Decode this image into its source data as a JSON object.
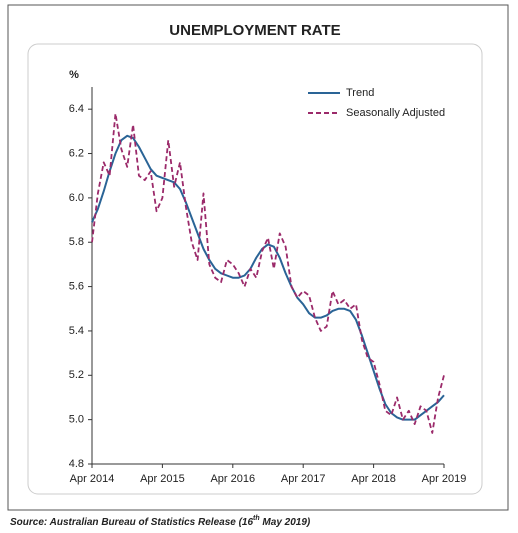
{
  "chart_data": {
    "type": "line",
    "title": "UNEMPLOYMENT RATE",
    "y_label": "%",
    "categories": [
      "Apr 2014",
      null,
      null,
      null,
      null,
      null,
      null,
      null,
      null,
      null,
      null,
      null,
      "Apr 2015",
      null,
      null,
      null,
      null,
      null,
      null,
      null,
      null,
      null,
      null,
      null,
      "Apr 2016",
      null,
      null,
      null,
      null,
      null,
      null,
      null,
      null,
      null,
      null,
      null,
      "Apr 2017",
      null,
      null,
      null,
      null,
      null,
      null,
      null,
      null,
      null,
      null,
      null,
      "Apr 2018",
      null,
      null,
      null,
      null,
      null,
      null,
      null,
      null,
      null,
      null,
      null,
      "Apr 2019"
    ],
    "series": [
      {
        "name": "Trend",
        "color": "#2a6496",
        "dashed": false,
        "values": [
          5.89,
          5.95,
          6.03,
          6.12,
          6.2,
          6.26,
          6.28,
          6.27,
          6.23,
          6.18,
          6.13,
          6.1,
          6.09,
          6.08,
          6.07,
          6.04,
          5.98,
          5.91,
          5.84,
          5.77,
          5.72,
          5.68,
          5.66,
          5.65,
          5.64,
          5.64,
          5.65,
          5.68,
          5.73,
          5.77,
          5.79,
          5.78,
          5.73,
          5.66,
          5.6,
          5.55,
          5.52,
          5.48,
          5.46,
          5.46,
          5.47,
          5.49,
          5.5,
          5.5,
          5.49,
          5.45,
          5.38,
          5.3,
          5.22,
          5.14,
          5.07,
          5.03,
          5.01,
          5.0,
          5.0,
          5.0,
          5.02,
          5.04,
          5.06,
          5.08,
          5.11
        ]
      },
      {
        "name": "Seasonally Adjusted",
        "color": "#9b2a6a",
        "dashed": true,
        "values": [
          5.8,
          6.02,
          6.16,
          6.1,
          6.38,
          6.22,
          6.14,
          6.33,
          6.1,
          6.08,
          6.12,
          5.94,
          6.0,
          6.26,
          6.05,
          6.16,
          5.96,
          5.8,
          5.72,
          6.02,
          5.7,
          5.64,
          5.62,
          5.72,
          5.7,
          5.66,
          5.6,
          5.68,
          5.64,
          5.76,
          5.82,
          5.68,
          5.84,
          5.78,
          5.6,
          5.55,
          5.58,
          5.56,
          5.46,
          5.4,
          5.42,
          5.58,
          5.52,
          5.54,
          5.5,
          5.52,
          5.36,
          5.28,
          5.26,
          5.16,
          5.04,
          5.02,
          5.1,
          5.0,
          5.04,
          4.98,
          5.06,
          5.04,
          4.94,
          5.1,
          5.2
        ]
      }
    ],
    "ylim": [
      4.8,
      6.5
    ],
    "yticks": [
      {
        "value": 4.8,
        "label": "4.8"
      },
      {
        "value": 5.0,
        "label": "5.0"
      },
      {
        "value": 5.2,
        "label": "5.2"
      },
      {
        "value": 5.4,
        "label": "5.4"
      },
      {
        "value": 5.6,
        "label": "5.6"
      },
      {
        "value": 5.8,
        "label": "5.8"
      },
      {
        "value": 6.0,
        "label": "6.0"
      },
      {
        "value": 6.2,
        "label": "6.2"
      },
      {
        "value": 6.4,
        "label": "6.4"
      }
    ],
    "grid": false,
    "legend": "upper right",
    "source": [
      "Source: Australian Bureau of Statistics Release (16",
      "th",
      " May 2019)"
    ]
  }
}
